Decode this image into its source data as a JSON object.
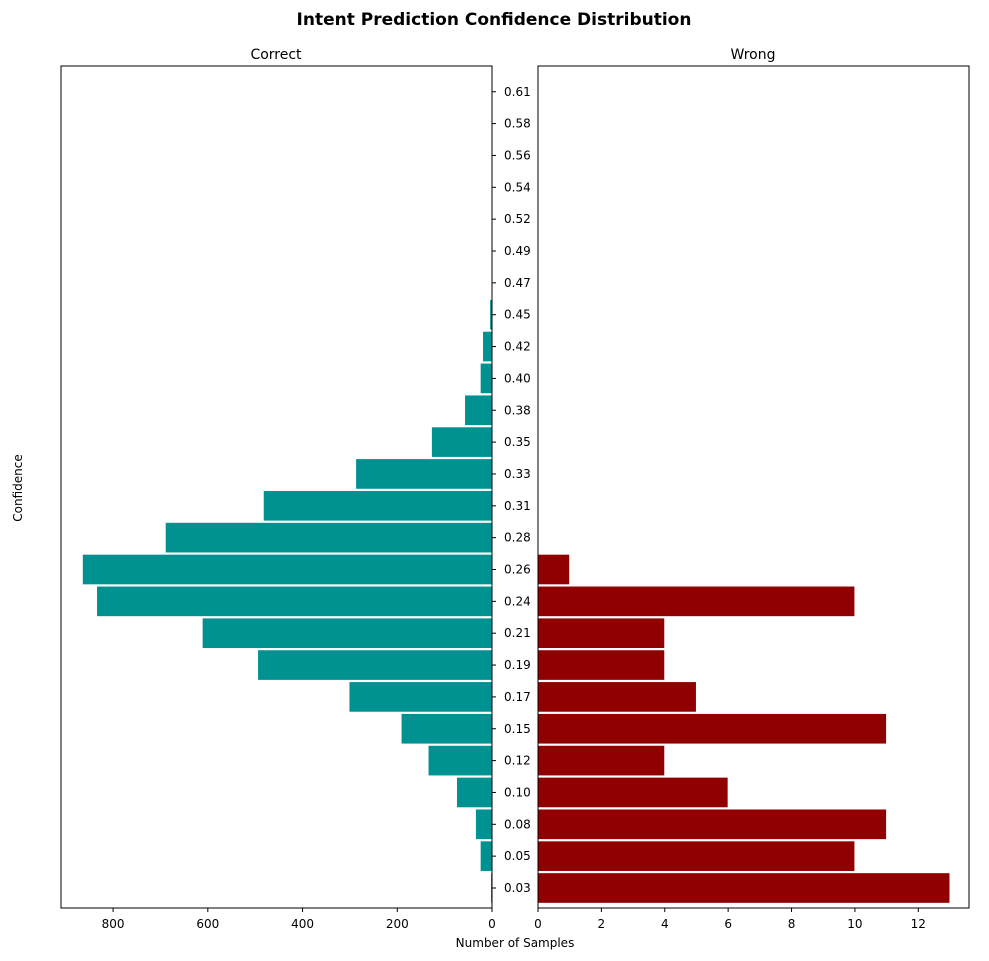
{
  "chart_data": {
    "type": "bar",
    "orientation": "horizontal",
    "title": "Intent Prediction Confidence Distribution",
    "ylabel": "Confidence",
    "xlabel": "Number of Samples",
    "bin_centers": [
      "0.03",
      "0.05",
      "0.08",
      "0.10",
      "0.12",
      "0.15",
      "0.17",
      "0.19",
      "0.21",
      "0.24",
      "0.26",
      "0.28",
      "0.31",
      "0.33",
      "0.35",
      "0.38",
      "0.40",
      "0.42",
      "0.45",
      "0.47",
      "0.49",
      "0.52",
      "0.54",
      "0.56",
      "0.58",
      "0.61"
    ],
    "y_tick_labels": [
      "0.03",
      "0.05",
      "0.08",
      "0.10",
      "0.12",
      "0.15",
      "0.17",
      "0.19",
      "0.21",
      "0.24",
      "0.26",
      "0.28",
      "0.31",
      "0.33",
      "0.35",
      "0.38",
      "0.40",
      "0.42",
      "0.45",
      "0.47",
      "0.49",
      "0.52",
      "0.54",
      "0.56",
      "0.58",
      "0.61"
    ],
    "panels": [
      {
        "name": "Correct",
        "color": "#009191",
        "direction": "left",
        "xlim": [
          0,
          910
        ],
        "x_ticks": [
          800,
          600,
          400,
          200,
          0
        ],
        "bars": [
          {
            "y": 0.03,
            "count": 3
          },
          {
            "y": 0.05,
            "count": 25
          },
          {
            "y": 0.08,
            "count": 35
          },
          {
            "y": 0.1,
            "count": 75
          },
          {
            "y": 0.12,
            "count": 135
          },
          {
            "y": 0.15,
            "count": 192
          },
          {
            "y": 0.17,
            "count": 302
          },
          {
            "y": 0.19,
            "count": 495
          },
          {
            "y": 0.21,
            "count": 612
          },
          {
            "y": 0.24,
            "count": 835
          },
          {
            "y": 0.26,
            "count": 865
          },
          {
            "y": 0.28,
            "count": 690
          },
          {
            "y": 0.31,
            "count": 483
          },
          {
            "y": 0.33,
            "count": 288
          },
          {
            "y": 0.35,
            "count": 128
          },
          {
            "y": 0.38,
            "count": 58
          },
          {
            "y": 0.4,
            "count": 25
          },
          {
            "y": 0.42,
            "count": 20
          },
          {
            "y": 0.45,
            "count": 5
          }
        ]
      },
      {
        "name": "Wrong",
        "color": "#910000",
        "direction": "right",
        "xlim": [
          0,
          13.6
        ],
        "x_ticks": [
          0,
          2,
          4,
          6,
          8,
          10,
          12
        ],
        "bars": [
          {
            "y": 0.03,
            "count": 13
          },
          {
            "y": 0.05,
            "count": 10
          },
          {
            "y": 0.08,
            "count": 11
          },
          {
            "y": 0.1,
            "count": 6
          },
          {
            "y": 0.12,
            "count": 4
          },
          {
            "y": 0.15,
            "count": 11
          },
          {
            "y": 0.17,
            "count": 5
          },
          {
            "y": 0.19,
            "count": 4
          },
          {
            "y": 0.21,
            "count": 4
          },
          {
            "y": 0.24,
            "count": 10
          },
          {
            "y": 0.26,
            "count": 1
          }
        ]
      }
    ]
  }
}
